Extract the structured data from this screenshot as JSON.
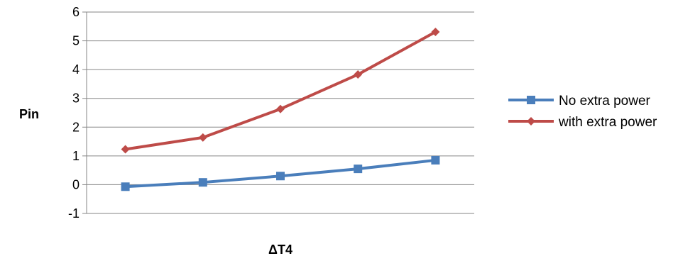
{
  "chart_data": {
    "type": "line",
    "title": "",
    "xlabel": "ΔT4",
    "ylabel": "Pin",
    "x": [
      1,
      2,
      3,
      4,
      5
    ],
    "ylim": [
      -1,
      6
    ],
    "yticks": [
      "-1",
      "0",
      "1",
      "2",
      "3",
      "4",
      "5",
      "6"
    ],
    "grid": true,
    "legend_position": "right",
    "series": [
      {
        "name": "No extra power",
        "color": "#4a7ebb",
        "marker": "square",
        "values": [
          -0.07,
          0.08,
          0.3,
          0.55,
          0.85
        ]
      },
      {
        "name": "with extra power",
        "color": "#be4b48",
        "marker": "diamond",
        "values": [
          1.23,
          1.64,
          2.63,
          3.83,
          5.31
        ]
      }
    ]
  }
}
